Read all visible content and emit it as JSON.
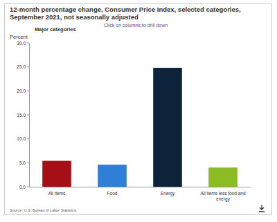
{
  "chart_data": {
    "type": "bar",
    "title": "12-month percentage change, Consumer Price Index, selected categories, September 2021, not seasonally adjusted",
    "subtitle": "Major categories",
    "y_label": "Percent",
    "annotations": [
      "Click on columns to drill down",
      "Source: U.S. Bureau of Labor Statistics."
    ],
    "categories": [
      "All items",
      "Food",
      "Energy",
      "All items less food and energy"
    ],
    "values": [
      5.4,
      4.6,
      24.8,
      4.0
    ],
    "colors": [
      "#a50f15",
      "#2f7ed8",
      "#0d233a",
      "#8bbc21"
    ],
    "ylim": [
      0,
      30
    ],
    "yticks": [
      {
        "value": 0,
        "label": "0.0"
      },
      {
        "value": 5,
        "label": "5.0"
      },
      {
        "value": 10,
        "label": "10.0"
      },
      {
        "value": 15,
        "label": "15.0"
      },
      {
        "value": 20,
        "label": "20.0"
      },
      {
        "value": 25,
        "label": "25.0"
      },
      {
        "value": 30,
        "label": "30.0"
      }
    ],
    "grid": false
  }
}
